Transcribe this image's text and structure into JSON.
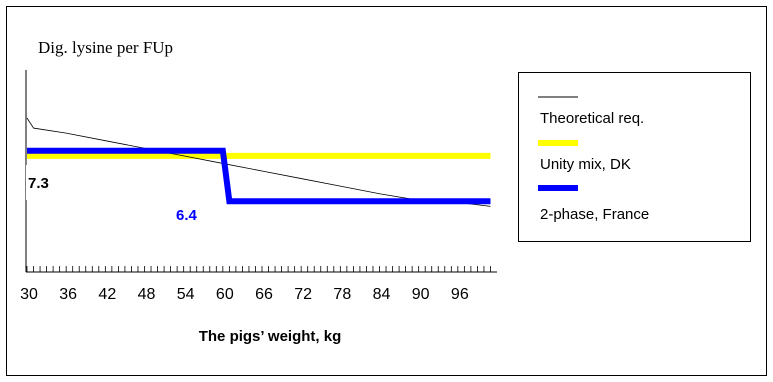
{
  "chart_data": {
    "type": "line",
    "title": "Dig. lysine per FUp",
    "xlabel": "The pigs’ weight, kg",
    "ylabel": "",
    "x_ticks": [
      "30",
      "36",
      "42",
      "48",
      "54",
      "60",
      "66",
      "72",
      "78",
      "84",
      "90",
      "96"
    ],
    "xlim": [
      30,
      102
    ],
    "ylim": [
      5.0,
      9.0
    ],
    "grid": false,
    "legend_position": "right",
    "series": [
      {
        "name": "Theoretical req.",
        "color": "#000000",
        "x": [
          30,
          31,
          36,
          42,
          48,
          54,
          60,
          66,
          72,
          78,
          84,
          90,
          96,
          101
        ],
        "y": [
          8.05,
          7.85,
          7.75,
          7.6,
          7.45,
          7.3,
          7.15,
          7.0,
          6.85,
          6.7,
          6.55,
          6.42,
          6.38,
          6.3
        ]
      },
      {
        "name": "Unity mix, DK",
        "color": "#ffff00",
        "x": [
          30,
          101
        ],
        "y": [
          7.3,
          7.3
        ]
      },
      {
        "name": "2-phase, France",
        "color": "#0000ff",
        "x": [
          30,
          60,
          61,
          101
        ],
        "y": [
          7.4,
          7.4,
          6.4,
          6.4
        ]
      }
    ],
    "annotations": [
      {
        "text": "7.3",
        "color": "#000000"
      },
      {
        "text": "6.4",
        "color": "#0000ff"
      }
    ]
  }
}
